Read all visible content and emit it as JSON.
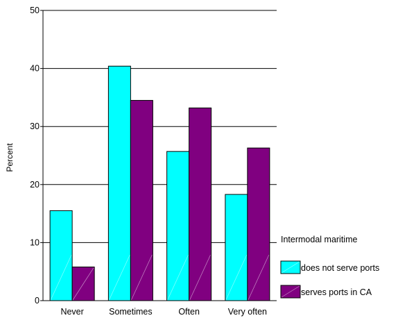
{
  "chart_data": {
    "type": "bar",
    "categories": [
      "Never",
      "Sometimes",
      "Often",
      "Very often"
    ],
    "series": [
      {
        "name": "does not serve ports",
        "color": "#00ffff",
        "values": [
          15.5,
          40.4,
          25.7,
          18.3
        ]
      },
      {
        "name": "serves ports in CA",
        "color": "#800080",
        "values": [
          5.8,
          34.5,
          33.2,
          26.3
        ]
      }
    ],
    "ylabel": "Percent",
    "ylim": [
      0,
      50
    ],
    "yticks": [
      0,
      10,
      20,
      30,
      40,
      50
    ],
    "grid": true,
    "legend": {
      "title": "Intermodal maritime",
      "placement": "right"
    }
  }
}
